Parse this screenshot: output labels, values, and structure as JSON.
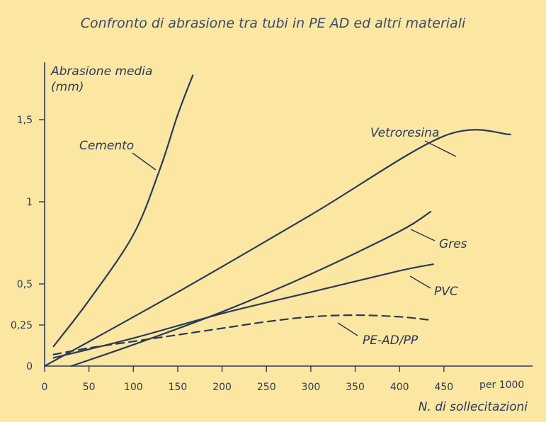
{
  "chart_data": {
    "type": "line",
    "title": "Confronto di abrasione tra tubi in PE AD ed altri materiali",
    "ylabel": [
      "Abrasione media",
      "(mm)"
    ],
    "xlabel": "N. di sollecitazioni",
    "x_unit_label": "per 1000",
    "xlim": [
      0,
      530
    ],
    "ylim": [
      0,
      1.8
    ],
    "x_ticks": [
      0,
      50,
      100,
      150,
      200,
      250,
      300,
      350,
      400,
      450
    ],
    "x_tick_labels": [
      "0",
      "50",
      "100",
      "150",
      "200",
      "250",
      "300",
      "350",
      "400",
      "450"
    ],
    "y_ticks": [
      0,
      0.25,
      0.5,
      1,
      1.5
    ],
    "y_tick_labels": [
      "0",
      "0,25",
      "0,5",
      "1",
      "1,5"
    ],
    "series": [
      {
        "name": "Cemento",
        "style": "solid",
        "points": [
          [
            10,
            0.12
          ],
          [
            50,
            0.4
          ],
          [
            100,
            0.8
          ],
          [
            130,
            1.2
          ],
          [
            150,
            1.53
          ],
          [
            167,
            1.77
          ]
        ]
      },
      {
        "name": "Vetroresina",
        "style": "solid",
        "points": [
          [
            0,
            0
          ],
          [
            150,
            0.45
          ],
          [
            300,
            0.92
          ],
          [
            450,
            1.4
          ],
          [
            525,
            1.41
          ]
        ]
      },
      {
        "name": "Gres",
        "style": "solid",
        "points": [
          [
            30,
            0
          ],
          [
            100,
            0.13
          ],
          [
            200,
            0.33
          ],
          [
            300,
            0.56
          ],
          [
            400,
            0.82
          ],
          [
            435,
            0.94
          ]
        ]
      },
      {
        "name": "PVC",
        "style": "solid",
        "points": [
          [
            10,
            0.05
          ],
          [
            100,
            0.17
          ],
          [
            200,
            0.32
          ],
          [
            300,
            0.45
          ],
          [
            400,
            0.58
          ],
          [
            438,
            0.62
          ]
        ]
      },
      {
        "name": "PE-AD/PP",
        "style": "dashed",
        "points": [
          [
            10,
            0.07
          ],
          [
            50,
            0.11
          ],
          [
            100,
            0.15
          ],
          [
            150,
            0.19
          ],
          [
            200,
            0.23
          ],
          [
            250,
            0.27
          ],
          [
            300,
            0.3
          ],
          [
            350,
            0.31
          ],
          [
            400,
            0.3
          ],
          [
            435,
            0.28
          ]
        ]
      }
    ],
    "annotations": [
      {
        "series": "Cemento",
        "text": "Cemento"
      },
      {
        "series": "Vetroresina",
        "text": "Vetroresina"
      },
      {
        "series": "Gres",
        "text": "Gres"
      },
      {
        "series": "PVC",
        "text": "PVC"
      },
      {
        "series": "PE-AD/PP",
        "text": "PE-AD/PP"
      }
    ],
    "colors": {
      "background": "#fbe7a1",
      "line": "#2c3a5a",
      "text": "#2c3a5a"
    }
  }
}
